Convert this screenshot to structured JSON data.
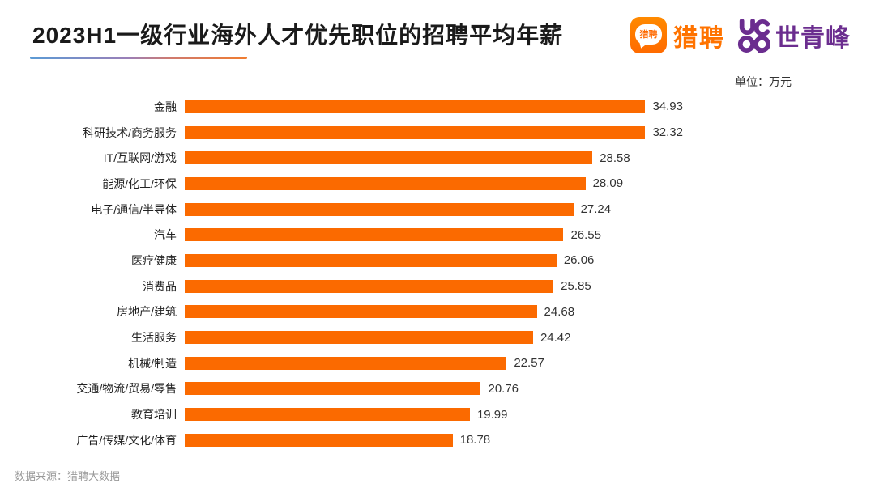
{
  "header": {
    "title": "2023H1一级行业海外人才优先职位的招聘平均年薪",
    "logos": {
      "liepin": {
        "icon_text": "猎聘",
        "label": "猎聘",
        "color": "#FF7300"
      },
      "shiqingfeng": {
        "label": "世青峰",
        "color": "#6B2D8F"
      }
    }
  },
  "chart_data": {
    "type": "bar",
    "orientation": "horizontal",
    "title": "2023H1一级行业海外人才优先职位的招聘平均年薪",
    "unit_label": "单位：万元",
    "categories": [
      "金融",
      "科研技术/商务服务",
      "IT/互联网/游戏",
      "能源/化工/环保",
      "电子/通信/半导体",
      "汽车",
      "医疗健康",
      "消费品",
      "房地产/建筑",
      "生活服务",
      "机械/制造",
      "交通/物流/贸易/零售",
      "教育培训",
      "广告/传媒/文化/体育"
    ],
    "values": [
      34.93,
      32.32,
      28.58,
      28.09,
      27.24,
      26.55,
      26.06,
      25.85,
      24.68,
      24.42,
      22.57,
      20.76,
      19.99,
      18.78
    ],
    "xlim": [
      0,
      34.93
    ],
    "bar_color": "#FB6A00",
    "value_label_position": "end",
    "grid": false,
    "legend": false
  },
  "footer": {
    "source": "数据来源：猎聘大数据"
  }
}
